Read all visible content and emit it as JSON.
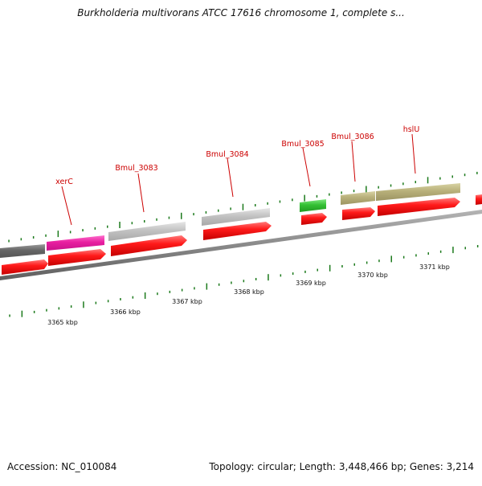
{
  "title": "Burkholderia multivorans ATCC 17616 chromosome 1, complete s...",
  "footer": {
    "accession": "Accession: NC_010084",
    "stats": "Topology: circular; Length: 3,448,466 bp; Genes: 3,214"
  },
  "colors": {
    "feature_dark_gray": "#6a6a6a",
    "feature_magenta": "#e0209a",
    "feature_light_gray": "#c4c4c4",
    "feature_green": "#33c033",
    "feature_khaki": "#b8b07a",
    "cds_red": "#ee1111",
    "label_red": "#cc0000",
    "tick_green": "#1c7a1c",
    "backbone_gray": "#8a8a8a"
  },
  "genes": [
    {
      "name": "xerC"
    },
    {
      "name": "Bmul_3083"
    },
    {
      "name": "Bmul_3084"
    },
    {
      "name": "Bmul_3085"
    },
    {
      "name": "Bmul_3086"
    },
    {
      "name": "hslU"
    }
  ],
  "ruler_labels": [
    "3365 kbp",
    "3366 kbp",
    "3367 kbp",
    "3368 kbp",
    "3369 kbp",
    "3370 kbp",
    "3371 kbp"
  ]
}
